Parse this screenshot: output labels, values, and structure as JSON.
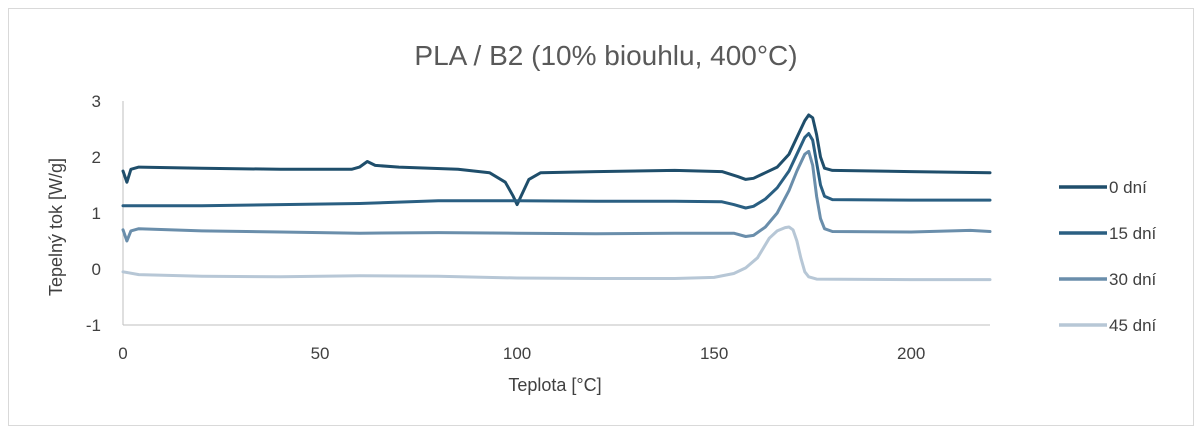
{
  "chart_data": {
    "type": "line",
    "title": "PLA / B2 (10% biouhlu, 400°C)",
    "xlabel": "Teplota [°C]",
    "ylabel": "Tepelný tok [W/g]",
    "xlim": [
      0,
      220
    ],
    "ylim": [
      -1,
      3
    ],
    "x_ticks": [
      0,
      50,
      100,
      150,
      200
    ],
    "y_ticks": [
      -1,
      0,
      1,
      2,
      3
    ],
    "x_tick_labels": [
      "0",
      "50",
      "100",
      "150",
      "200"
    ],
    "y_tick_labels": [
      "-1",
      "0",
      "1",
      "2",
      "3"
    ],
    "grid": false,
    "legend_position": "right",
    "series": [
      {
        "name": "0 dní",
        "color": "#1f4e6b",
        "points": [
          [
            0,
            1.75
          ],
          [
            1,
            1.55
          ],
          [
            2,
            1.78
          ],
          [
            4,
            1.82
          ],
          [
            20,
            1.8
          ],
          [
            40,
            1.78
          ],
          [
            58,
            1.78
          ],
          [
            60,
            1.82
          ],
          [
            62,
            1.92
          ],
          [
            64,
            1.85
          ],
          [
            70,
            1.82
          ],
          [
            85,
            1.78
          ],
          [
            93,
            1.72
          ],
          [
            97,
            1.55
          ],
          [
            99,
            1.3
          ],
          [
            100,
            1.15
          ],
          [
            101,
            1.3
          ],
          [
            103,
            1.6
          ],
          [
            106,
            1.72
          ],
          [
            120,
            1.74
          ],
          [
            140,
            1.76
          ],
          [
            152,
            1.74
          ],
          [
            156,
            1.65
          ],
          [
            158,
            1.6
          ],
          [
            160,
            1.62
          ],
          [
            163,
            1.72
          ],
          [
            166,
            1.82
          ],
          [
            169,
            2.05
          ],
          [
            171,
            2.35
          ],
          [
            173,
            2.65
          ],
          [
            174,
            2.75
          ],
          [
            175,
            2.7
          ],
          [
            176,
            2.4
          ],
          [
            177,
            2.0
          ],
          [
            178,
            1.8
          ],
          [
            180,
            1.76
          ],
          [
            200,
            1.74
          ],
          [
            220,
            1.72
          ]
        ]
      },
      {
        "name": "15 dní",
        "color": "#2a5f82",
        "points": [
          [
            0,
            1.13
          ],
          [
            20,
            1.13
          ],
          [
            40,
            1.15
          ],
          [
            60,
            1.17
          ],
          [
            80,
            1.22
          ],
          [
            100,
            1.22
          ],
          [
            120,
            1.21
          ],
          [
            140,
            1.21
          ],
          [
            152,
            1.2
          ],
          [
            155,
            1.15
          ],
          [
            158,
            1.09
          ],
          [
            160,
            1.12
          ],
          [
            163,
            1.25
          ],
          [
            166,
            1.45
          ],
          [
            169,
            1.75
          ],
          [
            171,
            2.05
          ],
          [
            173,
            2.35
          ],
          [
            174,
            2.42
          ],
          [
            175,
            2.3
          ],
          [
            176,
            1.9
          ],
          [
            177,
            1.5
          ],
          [
            178,
            1.3
          ],
          [
            180,
            1.24
          ],
          [
            200,
            1.23
          ],
          [
            220,
            1.23
          ]
        ]
      },
      {
        "name": "30 dní",
        "color": "#6a8eab",
        "points": [
          [
            0,
            0.7
          ],
          [
            1,
            0.5
          ],
          [
            2,
            0.68
          ],
          [
            4,
            0.72
          ],
          [
            20,
            0.68
          ],
          [
            40,
            0.66
          ],
          [
            60,
            0.64
          ],
          [
            80,
            0.65
          ],
          [
            100,
            0.64
          ],
          [
            120,
            0.63
          ],
          [
            140,
            0.64
          ],
          [
            155,
            0.64
          ],
          [
            158,
            0.58
          ],
          [
            160,
            0.6
          ],
          [
            163,
            0.75
          ],
          [
            166,
            1.0
          ],
          [
            169,
            1.4
          ],
          [
            171,
            1.75
          ],
          [
            173,
            2.05
          ],
          [
            174,
            2.1
          ],
          [
            175,
            1.85
          ],
          [
            176,
            1.3
          ],
          [
            177,
            0.9
          ],
          [
            178,
            0.72
          ],
          [
            180,
            0.67
          ],
          [
            200,
            0.66
          ],
          [
            215,
            0.69
          ],
          [
            220,
            0.67
          ]
        ]
      },
      {
        "name": "45 dní",
        "color": "#b7c7d6",
        "points": [
          [
            0,
            -0.05
          ],
          [
            4,
            -0.1
          ],
          [
            20,
            -0.13
          ],
          [
            40,
            -0.14
          ],
          [
            60,
            -0.12
          ],
          [
            80,
            -0.13
          ],
          [
            100,
            -0.16
          ],
          [
            120,
            -0.17
          ],
          [
            140,
            -0.17
          ],
          [
            150,
            -0.15
          ],
          [
            155,
            -0.08
          ],
          [
            158,
            0.02
          ],
          [
            161,
            0.2
          ],
          [
            164,
            0.55
          ],
          [
            166,
            0.68
          ],
          [
            168,
            0.74
          ],
          [
            169,
            0.75
          ],
          [
            170,
            0.7
          ],
          [
            171,
            0.5
          ],
          [
            172,
            0.2
          ],
          [
            173,
            -0.05
          ],
          [
            174,
            -0.14
          ],
          [
            176,
            -0.18
          ],
          [
            200,
            -0.19
          ],
          [
            220,
            -0.19
          ]
        ]
      }
    ]
  }
}
